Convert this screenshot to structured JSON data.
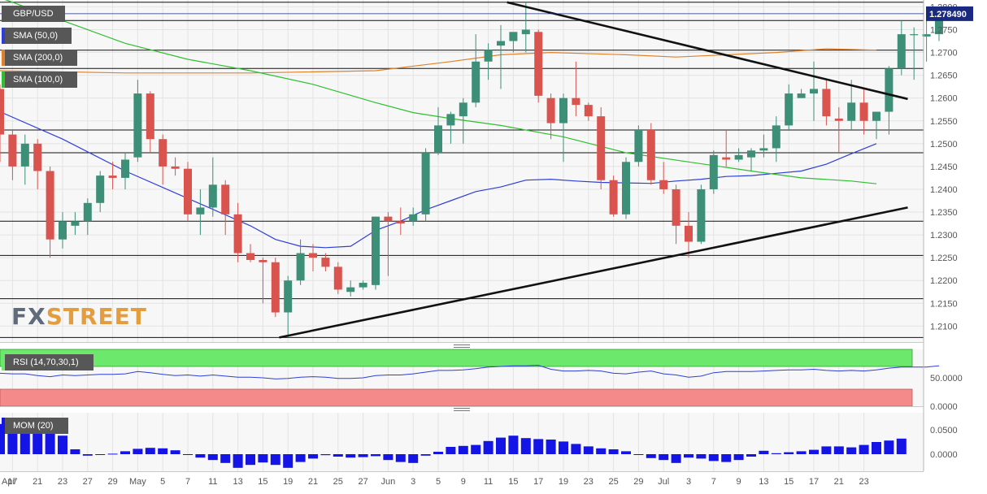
{
  "colors": {
    "up": "#3d8f78",
    "down": "#d9534f",
    "sma50": "#2e3fd6",
    "sma200": "#e0802a",
    "sma100": "#2fbf2f",
    "rsi": "#2e3fd6",
    "mom": "#1414e6",
    "rsi_over": "#6ce86c",
    "rsi_under": "#f48a8a",
    "current_price_bg": "#1a2a80"
  },
  "watermark": {
    "fx": "FX",
    "street": "STREET"
  },
  "chart_data": [
    {
      "type": "candlestick",
      "title": "GBP/USD",
      "price_axis": {
        "ylim": [
          1.2065,
          1.2815
        ],
        "ticks": [
          "1.2800",
          "1.2750",
          "1.2700",
          "1.2650",
          "1.2600",
          "1.2550",
          "1.2500",
          "1.2450",
          "1.2400",
          "1.2350",
          "1.2300",
          "1.2250",
          "1.2200",
          "1.2150",
          "1.2100"
        ]
      },
      "current_price": 1.27849,
      "current_price_label": "1.278490",
      "x_axis_labels": [
        {
          "label": "Apr",
          "bar": -0.3
        },
        {
          "label": "17",
          "bar": 1
        },
        {
          "label": "21",
          "bar": 3
        },
        {
          "label": "23",
          "bar": 5
        },
        {
          "label": "27",
          "bar": 7
        },
        {
          "label": "29",
          "bar": 9
        },
        {
          "label": "May",
          "bar": 11
        },
        {
          "label": "5",
          "bar": 13
        },
        {
          "label": "7",
          "bar": 15
        },
        {
          "label": "11",
          "bar": 17
        },
        {
          "label": "13",
          "bar": 19
        },
        {
          "label": "15",
          "bar": 21
        },
        {
          "label": "19",
          "bar": 23
        },
        {
          "label": "21",
          "bar": 25
        },
        {
          "label": "25",
          "bar": 27
        },
        {
          "label": "27",
          "bar": 29
        },
        {
          "label": "Jun",
          "bar": 31
        },
        {
          "label": "3",
          "bar": 33
        },
        {
          "label": "5",
          "bar": 35
        },
        {
          "label": "9",
          "bar": 37
        },
        {
          "label": "11",
          "bar": 39
        },
        {
          "label": "15",
          "bar": 41
        },
        {
          "label": "17",
          "bar": 43
        },
        {
          "label": "19",
          "bar": 45
        },
        {
          "label": "23",
          "bar": 47
        },
        {
          "label": "25",
          "bar": 49
        },
        {
          "label": "29",
          "bar": 51
        },
        {
          "label": "Jul",
          "bar": 53
        },
        {
          "label": "3",
          "bar": 55
        },
        {
          "label": "7",
          "bar": 57
        },
        {
          "label": "9",
          "bar": 59
        },
        {
          "label": "13",
          "bar": 61
        },
        {
          "label": "15",
          "bar": 63
        },
        {
          "label": "17",
          "bar": 65
        },
        {
          "label": "21",
          "bar": 67
        },
        {
          "label": "23",
          "bar": 69
        }
      ],
      "candles": [
        {
          "o": 1.262,
          "h": 1.263,
          "l": 1.246,
          "c": 1.252
        },
        {
          "o": 1.252,
          "h": 1.253,
          "l": 1.242,
          "c": 1.245
        },
        {
          "o": 1.245,
          "h": 1.252,
          "l": 1.241,
          "c": 1.25
        },
        {
          "o": 1.25,
          "h": 1.251,
          "l": 1.24,
          "c": 1.244
        },
        {
          "o": 1.244,
          "h": 1.245,
          "l": 1.225,
          "c": 1.229
        },
        {
          "o": 1.229,
          "h": 1.235,
          "l": 1.227,
          "c": 1.233
        },
        {
          "o": 1.232,
          "h": 1.235,
          "l": 1.23,
          "c": 1.233
        },
        {
          "o": 1.233,
          "h": 1.238,
          "l": 1.23,
          "c": 1.237
        },
        {
          "o": 1.237,
          "h": 1.244,
          "l": 1.235,
          "c": 1.243
        },
        {
          "o": 1.243,
          "h": 1.246,
          "l": 1.24,
          "c": 1.2425
        },
        {
          "o": 1.2425,
          "h": 1.248,
          "l": 1.24,
          "c": 1.2465
        },
        {
          "o": 1.247,
          "h": 1.264,
          "l": 1.246,
          "c": 1.261
        },
        {
          "o": 1.261,
          "h": 1.2615,
          "l": 1.248,
          "c": 1.251
        },
        {
          "o": 1.251,
          "h": 1.252,
          "l": 1.241,
          "c": 1.245
        },
        {
          "o": 1.245,
          "h": 1.247,
          "l": 1.243,
          "c": 1.2445
        },
        {
          "o": 1.2445,
          "h": 1.246,
          "l": 1.233,
          "c": 1.2345
        },
        {
          "o": 1.2345,
          "h": 1.24,
          "l": 1.23,
          "c": 1.236
        },
        {
          "o": 1.236,
          "h": 1.247,
          "l": 1.234,
          "c": 1.241
        },
        {
          "o": 1.241,
          "h": 1.242,
          "l": 1.23,
          "c": 1.2345
        },
        {
          "o": 1.2345,
          "h": 1.237,
          "l": 1.224,
          "c": 1.226
        },
        {
          "o": 1.226,
          "h": 1.228,
          "l": 1.224,
          "c": 1.2245
        },
        {
          "o": 1.2245,
          "h": 1.225,
          "l": 1.215,
          "c": 1.224
        },
        {
          "o": 1.224,
          "h": 1.225,
          "l": 1.212,
          "c": 1.213
        },
        {
          "o": 1.213,
          "h": 1.221,
          "l": 1.2075,
          "c": 1.22
        },
        {
          "o": 1.22,
          "h": 1.229,
          "l": 1.219,
          "c": 1.226
        },
        {
          "o": 1.226,
          "h": 1.228,
          "l": 1.222,
          "c": 1.225
        },
        {
          "o": 1.225,
          "h": 1.226,
          "l": 1.222,
          "c": 1.223
        },
        {
          "o": 1.223,
          "h": 1.224,
          "l": 1.217,
          "c": 1.218
        },
        {
          "o": 1.2175,
          "h": 1.22,
          "l": 1.2165,
          "c": 1.2185
        },
        {
          "o": 1.2185,
          "h": 1.22,
          "l": 1.218,
          "c": 1.2195
        },
        {
          "o": 1.219,
          "h": 1.234,
          "l": 1.218,
          "c": 1.234
        },
        {
          "o": 1.234,
          "h": 1.235,
          "l": 1.221,
          "c": 1.233
        },
        {
          "o": 1.233,
          "h": 1.236,
          "l": 1.23,
          "c": 1.2325
        },
        {
          "o": 1.233,
          "h": 1.236,
          "l": 1.232,
          "c": 1.2345
        },
        {
          "o": 1.2345,
          "h": 1.249,
          "l": 1.233,
          "c": 1.248
        },
        {
          "o": 1.248,
          "h": 1.258,
          "l": 1.2475,
          "c": 1.254
        },
        {
          "o": 1.254,
          "h": 1.257,
          "l": 1.25,
          "c": 1.2565
        },
        {
          "o": 1.256,
          "h": 1.26,
          "l": 1.25,
          "c": 1.259
        },
        {
          "o": 1.259,
          "h": 1.274,
          "l": 1.258,
          "c": 1.268
        },
        {
          "o": 1.268,
          "h": 1.272,
          "l": 1.264,
          "c": 1.2705
        },
        {
          "o": 1.2715,
          "h": 1.276,
          "l": 1.262,
          "c": 1.2725
        },
        {
          "o": 1.2725,
          "h": 1.274,
          "l": 1.27,
          "c": 1.2745
        },
        {
          "o": 1.274,
          "h": 1.281,
          "l": 1.27,
          "c": 1.275
        },
        {
          "o": 1.2745,
          "h": 1.275,
          "l": 1.259,
          "c": 1.2605
        },
        {
          "o": 1.26,
          "h": 1.261,
          "l": 1.251,
          "c": 1.2545
        },
        {
          "o": 1.2545,
          "h": 1.261,
          "l": 1.246,
          "c": 1.26
        },
        {
          "o": 1.26,
          "h": 1.268,
          "l": 1.256,
          "c": 1.2585
        },
        {
          "o": 1.2585,
          "h": 1.259,
          "l": 1.255,
          "c": 1.256
        },
        {
          "o": 1.256,
          "h": 1.258,
          "l": 1.24,
          "c": 1.242
        },
        {
          "o": 1.242,
          "h": 1.243,
          "l": 1.234,
          "c": 1.2345
        },
        {
          "o": 1.2345,
          "h": 1.247,
          "l": 1.2335,
          "c": 1.246
        },
        {
          "o": 1.246,
          "h": 1.254,
          "l": 1.245,
          "c": 1.253
        },
        {
          "o": 1.253,
          "h": 1.2545,
          "l": 1.241,
          "c": 1.242
        },
        {
          "o": 1.242,
          "h": 1.246,
          "l": 1.239,
          "c": 1.24
        },
        {
          "o": 1.24,
          "h": 1.241,
          "l": 1.228,
          "c": 1.232
        },
        {
          "o": 1.232,
          "h": 1.235,
          "l": 1.225,
          "c": 1.2285
        },
        {
          "o": 1.2285,
          "h": 1.241,
          "l": 1.228,
          "c": 1.24
        },
        {
          "o": 1.24,
          "h": 1.2485,
          "l": 1.239,
          "c": 1.2475
        },
        {
          "o": 1.247,
          "h": 1.253,
          "l": 1.245,
          "c": 1.2465
        },
        {
          "o": 1.2465,
          "h": 1.249,
          "l": 1.246,
          "c": 1.2475
        },
        {
          "o": 1.247,
          "h": 1.249,
          "l": 1.244,
          "c": 1.2485
        },
        {
          "o": 1.2485,
          "h": 1.252,
          "l": 1.247,
          "c": 1.249
        },
        {
          "o": 1.249,
          "h": 1.256,
          "l": 1.246,
          "c": 1.254
        },
        {
          "o": 1.254,
          "h": 1.263,
          "l": 1.253,
          "c": 1.261
        },
        {
          "o": 1.26,
          "h": 1.262,
          "l": 1.26,
          "c": 1.261
        },
        {
          "o": 1.261,
          "h": 1.268,
          "l": 1.255,
          "c": 1.262
        },
        {
          "o": 1.262,
          "h": 1.264,
          "l": 1.254,
          "c": 1.256
        },
        {
          "o": 1.2555,
          "h": 1.258,
          "l": 1.248,
          "c": 1.255
        },
        {
          "o": 1.255,
          "h": 1.264,
          "l": 1.253,
          "c": 1.259
        },
        {
          "o": 1.259,
          "h": 1.262,
          "l": 1.252,
          "c": 1.255
        },
        {
          "o": 1.255,
          "h": 1.257,
          "l": 1.251,
          "c": 1.257
        },
        {
          "o": 1.257,
          "h": 1.267,
          "l": 1.252,
          "c": 1.2665
        },
        {
          "o": 1.2665,
          "h": 1.277,
          "l": 1.265,
          "c": 1.274
        },
        {
          "o": 1.274,
          "h": 1.2755,
          "l": 1.264,
          "c": 1.274
        },
        {
          "o": 1.2735,
          "h": 1.277,
          "l": 1.268,
          "c": 1.274
        },
        {
          "o": 1.274,
          "h": 1.2795,
          "l": 1.2725,
          "c": 1.2785
        }
      ],
      "indicators": [
        {
          "name": "SMA (50,0)",
          "points": [
            [
              0,
              1.257
            ],
            [
              5,
              1.251
            ],
            [
              10,
              1.244
            ],
            [
              15,
              1.238
            ],
            [
              20,
              1.232
            ],
            [
              22,
              1.229
            ],
            [
              24,
              1.2275
            ],
            [
              26,
              1.2272
            ],
            [
              28,
              1.2275
            ],
            [
              30,
              1.231
            ],
            [
              32,
              1.233
            ],
            [
              34,
              1.2355
            ],
            [
              36,
              1.2375
            ],
            [
              38,
              1.2395
            ],
            [
              40,
              1.2405
            ],
            [
              42,
              1.242
            ],
            [
              44,
              1.2422
            ],
            [
              46,
              1.2418
            ],
            [
              48,
              1.2415
            ],
            [
              50,
              1.2414
            ],
            [
              52,
              1.2413
            ],
            [
              54,
              1.2418
            ],
            [
              56,
              1.2422
            ],
            [
              58,
              1.2428
            ],
            [
              60,
              1.243
            ],
            [
              62,
              1.2435
            ],
            [
              64,
              1.244
            ],
            [
              66,
              1.2455
            ],
            [
              68,
              1.2478
            ],
            [
              70,
              1.25
            ]
          ]
        },
        {
          "name": "SMA (200,0)",
          "points": [
            [
              0,
              1.266
            ],
            [
              10,
              1.2655
            ],
            [
              20,
              1.2655
            ],
            [
              30,
              1.266
            ],
            [
              36,
              1.268
            ],
            [
              40,
              1.2695
            ],
            [
              44,
              1.27
            ],
            [
              50,
              1.2695
            ],
            [
              54,
              1.269
            ],
            [
              58,
              1.2695
            ],
            [
              62,
              1.27
            ],
            [
              66,
              1.2708
            ],
            [
              70,
              1.2705
            ]
          ]
        },
        {
          "name": "SMA (100,0)",
          "points": [
            [
              0,
              1.282
            ],
            [
              5,
              1.277
            ],
            [
              10,
              1.272
            ],
            [
              15,
              1.2685
            ],
            [
              20,
              1.266
            ],
            [
              25,
              1.263
            ],
            [
              30,
              1.259
            ],
            [
              33,
              1.2568
            ],
            [
              36,
              1.2555
            ],
            [
              40,
              1.254
            ],
            [
              45,
              1.2515
            ],
            [
              50,
              1.248
            ],
            [
              55,
              1.246
            ],
            [
              60,
              1.244
            ],
            [
              64,
              1.2425
            ],
            [
              68,
              1.2418
            ],
            [
              70,
              1.2412
            ]
          ]
        }
      ],
      "trendlines": [
        {
          "start": [
            40.5,
            1.281
          ],
          "end": [
            72.5,
            1.2598
          ]
        },
        {
          "start": [
            22.3,
            1.2075
          ],
          "end": [
            72.5,
            1.236
          ]
        }
      ],
      "levels": [
        1.281,
        1.277,
        1.2705,
        1.2665,
        1.253,
        1.248,
        1.233,
        1.2255,
        1.216,
        1.2075
      ]
    },
    {
      "type": "line",
      "title": "RSI (14,70,30,1)",
      "ylim": [
        0,
        100
      ],
      "ticks": [
        "50.0000",
        "0.0000"
      ],
      "overbought": 70,
      "oversold": 30,
      "values": [
        58,
        57,
        57,
        54,
        52,
        55,
        54,
        55,
        56,
        56,
        57,
        61,
        59,
        56,
        54,
        55,
        53,
        55,
        53,
        51,
        51,
        50,
        48,
        49,
        51,
        52,
        51,
        49,
        49,
        50,
        54,
        55,
        55,
        57,
        60,
        63,
        63,
        64,
        66,
        69,
        70,
        71,
        71,
        72,
        65,
        62,
        62,
        63,
        62,
        58,
        57,
        60,
        62,
        57,
        55,
        51,
        53,
        59,
        61,
        61,
        61,
        62,
        63,
        64,
        64,
        65,
        63,
        62,
        63,
        62,
        64,
        67,
        69,
        69,
        69,
        71
      ]
    },
    {
      "type": "bar",
      "title": "MOM (20)",
      "ylim": [
        -0.035,
        0.085
      ],
      "ticks": [
        "0.0500",
        "0.0000"
      ],
      "values": [
        0.062,
        0.062,
        0.056,
        0.055,
        0.052,
        0.038,
        0.01,
        -0.003,
        0.0,
        0.001,
        0.006,
        0.011,
        0.013,
        0.012,
        0.008,
        -0.001,
        -0.007,
        -0.012,
        -0.018,
        -0.028,
        -0.022,
        -0.017,
        -0.022,
        -0.028,
        -0.016,
        -0.009,
        -0.002,
        -0.005,
        -0.007,
        -0.006,
        -0.004,
        -0.012,
        -0.016,
        -0.018,
        -0.003,
        0.005,
        0.015,
        0.017,
        0.019,
        0.027,
        0.034,
        0.038,
        0.033,
        0.031,
        0.03,
        0.026,
        0.021,
        0.016,
        0.012,
        0.01,
        0.006,
        0.0,
        -0.008,
        -0.012,
        -0.018,
        -0.007,
        -0.009,
        -0.014,
        -0.016,
        -0.012,
        -0.005,
        0.007,
        0.002,
        0.004,
        0.006,
        0.009,
        0.016,
        0.016,
        0.014,
        0.019,
        0.025,
        0.028,
        0.032
      ]
    }
  ]
}
